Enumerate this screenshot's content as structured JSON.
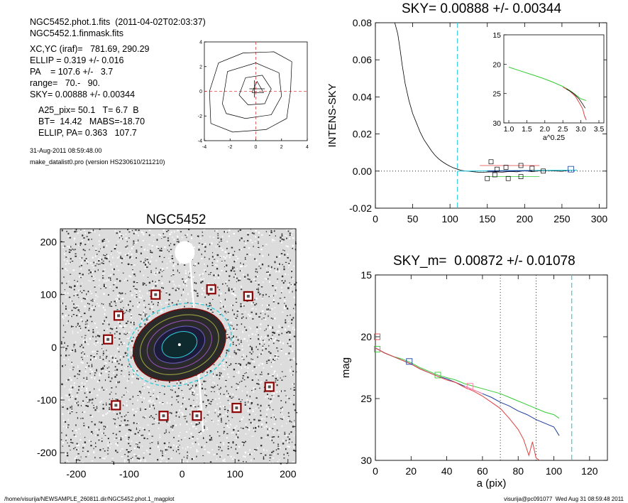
{
  "info": {
    "line1": "NGC5452.phot.1.fits  (2011-04-02T02:03:37)",
    "line2": "NGC5452.1.finmask.fits",
    "line3": "XC,YC (iraf)=   781.69, 290.29",
    "line4": "ELLIP = 0.319 +/- 0.016",
    "line5": "PA    = 107.6 +/-   3.7",
    "line6": "range=   70.-   90.",
    "line7": "SKY= 0.00888 +/- 0.00344",
    "line8": "A25_pix= 50.1   T= 6.7  B",
    "line9": "BT=  14.42   MABS=-18.70",
    "line10": "ELLIP, PA= 0.363   107.7",
    "date": "31-Aug-2011 08:59:48.00",
    "prog": "make_datalist0.pro (version HS230610/211210)"
  },
  "footer": {
    "left": "/home/visurija/NEWSAMPLE_260811.dir/NGC5452.phot.1_magplot",
    "right": "visurija@pc091077  Wed Aug 31 08:59:48 2011"
  },
  "colors": {
    "cyan": "#33ccdd",
    "red": "#e04040",
    "green": "#33cc33",
    "blue": "#1d3f9c",
    "pink": "#ff7fa8",
    "darkred": "#8b0000"
  },
  "chart_data": [
    {
      "type": "line",
      "name": "contour",
      "title": "",
      "xlim": [
        -4,
        4
      ],
      "ylim": [
        -4,
        4
      ],
      "xticks": [
        "-4",
        "-2",
        "0",
        "2",
        "4"
      ],
      "yticks": [
        "-4",
        "-2",
        "0",
        "2",
        "4"
      ],
      "contours": [
        [
          [
            -3.5,
            -2.6
          ],
          [
            -3.6,
            0
          ],
          [
            -2.9,
            2.3
          ],
          [
            -1.0,
            3.1
          ],
          [
            1.4,
            3.2
          ],
          [
            2.8,
            2.4
          ],
          [
            2.7,
            0
          ],
          [
            2.4,
            -2.2
          ],
          [
            0.8,
            -3.1
          ],
          [
            -1.8,
            -3.3
          ],
          [
            -3.5,
            -2.6
          ]
        ],
        [
          [
            -2.6,
            -1.0
          ],
          [
            -2.2,
            1.6
          ],
          [
            0,
            2.3
          ],
          [
            1.8,
            1.5
          ],
          [
            2.0,
            -0.4
          ],
          [
            1.2,
            -1.9
          ],
          [
            -0.8,
            -2.2
          ],
          [
            -2.3,
            -1.8
          ],
          [
            -2.6,
            -1.0
          ]
        ],
        [
          [
            -1.3,
            -0.3
          ],
          [
            -0.8,
            1.1
          ],
          [
            0.5,
            1.3
          ],
          [
            1.2,
            0.2
          ],
          [
            0.7,
            -1.0
          ],
          [
            -0.6,
            -1.1
          ],
          [
            -1.3,
            -0.3
          ]
        ],
        [
          [
            -0.3,
            -0.1
          ],
          [
            0.1,
            0.8
          ],
          [
            0.6,
            -0.1
          ],
          [
            -0.3,
            -0.1
          ]
        ]
      ]
    },
    {
      "type": "line",
      "name": "sky-profile",
      "title": "SKY= 0.00888 +/- 0.00344",
      "ylabel": "INTENS-SKY",
      "xlim": [
        0,
        310
      ],
      "ylim": [
        -0.02,
        0.08
      ],
      "xticks": [
        "0",
        "50",
        "100",
        "150",
        "200",
        "250",
        "300"
      ],
      "yticks": [
        "-0.02",
        "0.00",
        "0.02",
        "0.04",
        "0.06",
        "0.08"
      ],
      "vline_x": 110,
      "profile_x": [
        26,
        30,
        33,
        36,
        40,
        45,
        50,
        55,
        60,
        65,
        70,
        75,
        80,
        85,
        90,
        95,
        100,
        105,
        110,
        115,
        120,
        130,
        140,
        150,
        160,
        170,
        180,
        190,
        200,
        210,
        220,
        230,
        240,
        250,
        260,
        270
      ],
      "profile_y": [
        0.08,
        0.074,
        0.066,
        0.057,
        0.047,
        0.038,
        0.031,
        0.026,
        0.021,
        0.017,
        0.014,
        0.011,
        0.0085,
        0.0065,
        0.005,
        0.0037,
        0.0026,
        0.0017,
        0.001,
        0.0004,
        0.0001,
        -0.0003,
        -0.0007,
        -0.0005,
        -0.0004,
        -0.0006,
        -0.0002,
        -0.0004,
        0.0002,
        -0.0003,
        0.0001,
        0.0002,
        0.0001,
        -0.0001,
        0.0004,
        0.0005
      ],
      "boxes": [
        [
          155,
          0.005
        ],
        [
          175,
          0.002
        ],
        [
          195,
          0.003
        ],
        [
          210,
          0.0015
        ],
        [
          225,
          0.0
        ],
        [
          150,
          -0.004
        ],
        [
          160,
          -0.002
        ],
        [
          178,
          -0.004
        ],
        [
          195,
          -0.003
        ],
        [
          163,
          0.001
        ]
      ],
      "inset": {
        "xlabel": "a^0.25",
        "xlim": [
          1.0,
          3.5
        ],
        "ylim": [
          15,
          30
        ],
        "xticks": [
          "1.0",
          "1.5",
          "2.0",
          "2.5",
          "3.0",
          "3.5"
        ],
        "yticks": [
          "15",
          "20",
          "25",
          "30"
        ],
        "green_x": [
          1.0,
          1.3,
          1.6,
          1.9,
          2.2,
          2.5,
          2.7,
          2.85,
          3.0,
          3.15
        ],
        "green_y": [
          20.5,
          21.1,
          21.7,
          22.3,
          23.0,
          23.8,
          24.5,
          25.2,
          25.9,
          26.2
        ],
        "red_x": [
          2.5,
          2.7,
          2.85,
          2.95,
          3.05,
          3.1,
          3.15
        ],
        "red_y": [
          23.9,
          24.6,
          25.5,
          26.5,
          27.6,
          28.8,
          29.5
        ],
        "blue_x": [
          2.6,
          2.8,
          2.95,
          3.05,
          3.12
        ],
        "blue_y": [
          24.2,
          25.0,
          25.9,
          26.8,
          27.5
        ]
      }
    },
    {
      "type": "scatter",
      "name": "galaxy-image",
      "title": "NGC5452",
      "xlim": [
        -230,
        215
      ],
      "ylim": [
        -220,
        225
      ],
      "xticks": [
        "-200",
        "-100",
        "0",
        "100",
        "200"
      ],
      "yticks": [
        "200",
        "100",
        "0",
        "-100",
        "-200"
      ],
      "ellipse": {
        "cx": -5,
        "cy": 5,
        "a": 90,
        "b": 65,
        "pa_deg": 20
      },
      "mask_boxes": [
        [
          -50,
          100
        ],
        [
          55,
          110
        ],
        [
          125,
          97
        ],
        [
          -120,
          60
        ],
        [
          -140,
          15
        ],
        [
          165,
          -75
        ],
        [
          -125,
          -110
        ],
        [
          -35,
          -130
        ],
        [
          28,
          -130
        ],
        [
          103,
          -115
        ]
      ]
    },
    {
      "type": "line",
      "name": "mag-profile",
      "title": "SKY_m=  0.00872 +/- 0.01078",
      "xlabel": "a (pix)",
      "ylabel": "mag",
      "xlim": [
        0,
        130
      ],
      "ylim": [
        15,
        30
      ],
      "xticks": [
        "0",
        "20",
        "40",
        "60",
        "80",
        "100",
        "120"
      ],
      "yticks": [
        "15",
        "20",
        "25",
        "30"
      ],
      "dotted_x": [
        70,
        90
      ],
      "vline_x": 110,
      "series": [
        {
          "color": "green",
          "x": [
            0,
            5,
            10,
            15,
            20,
            25,
            30,
            35,
            40,
            45,
            50,
            55,
            60,
            65,
            70,
            75,
            80,
            85,
            90,
            95,
            100,
            103
          ],
          "y": [
            20.9,
            21.3,
            21.6,
            21.8,
            22.1,
            22.5,
            22.8,
            23.1,
            23.3,
            23.5,
            23.8,
            24.0,
            24.2,
            24.4,
            24.6,
            24.9,
            25.2,
            25.5,
            25.8,
            26.1,
            26.3,
            26.6
          ]
        },
        {
          "color": "blue",
          "x": [
            0,
            5,
            10,
            15,
            20,
            25,
            30,
            35,
            40,
            45,
            50,
            55,
            60,
            65,
            70,
            75,
            80,
            85,
            90,
            95,
            100,
            103
          ],
          "y": [
            20.9,
            21.3,
            21.6,
            21.9,
            22.2,
            22.6,
            22.9,
            23.2,
            23.4,
            23.7,
            24.0,
            24.3,
            24.6,
            24.9,
            25.3,
            25.6,
            26.0,
            26.3,
            26.7,
            27.0,
            27.3,
            28.0
          ]
        },
        {
          "color": "red",
          "x": [
            0,
            5,
            10,
            15,
            20,
            25,
            30,
            35,
            40,
            45,
            50,
            55,
            60,
            65,
            70,
            75,
            80,
            83,
            86,
            88,
            90,
            92
          ],
          "y": [
            20.9,
            21.3,
            21.6,
            21.9,
            22.2,
            22.6,
            22.9,
            23.2,
            23.5,
            23.7,
            24.1,
            24.4,
            24.8,
            25.3,
            25.8,
            26.6,
            27.5,
            28.3,
            29.6,
            28.5,
            29.8,
            30
          ]
        },
        {
          "color": "pink",
          "x": [
            50,
            55,
            60
          ],
          "y": [
            24.0,
            24.3,
            24.6
          ]
        }
      ],
      "markers": [
        {
          "color": "red",
          "x": 1,
          "y": 20.0
        },
        {
          "color": "green",
          "x": 1,
          "y": 21.0
        },
        {
          "color": "blue",
          "x": 19,
          "y": 22.0
        },
        {
          "color": "green",
          "x": 35,
          "y": 23.1
        },
        {
          "color": "pink",
          "x": 53,
          "y": 24.0
        }
      ]
    }
  ]
}
